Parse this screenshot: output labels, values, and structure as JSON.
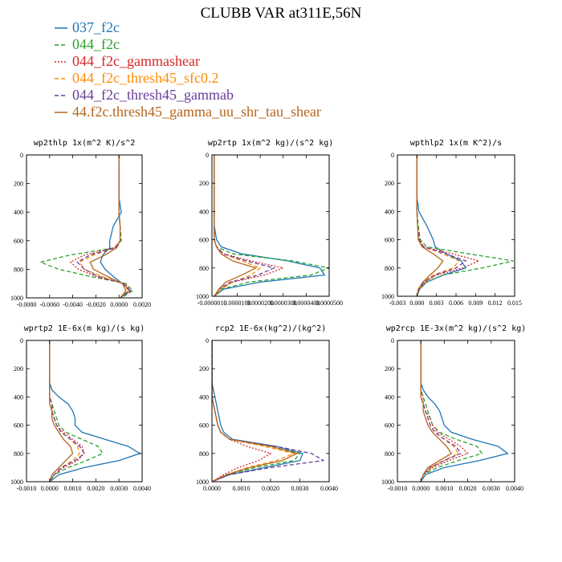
{
  "figure": {
    "title": "CLUBB VAR at311E,56N",
    "colors": {
      "037_f2c": "#1f77b4",
      "044_f2c": "#2ca02c",
      "044_f2c_gammashear": "#d62728",
      "044_f2c_thresh45_sfc0.2": "#ff8c00",
      "044_f2c_thresh45_gammab": "#6a3d9a",
      "44.f2c.thresh45_gamma_uu_shr_tau_shear": "#b5651d"
    }
  },
  "legend": [
    {
      "label": "037_f2c",
      "color": "#1f77b4",
      "dash": "solid"
    },
    {
      "label": "044_f2c",
      "color": "#2ca02c",
      "dash": "dashed"
    },
    {
      "label": "044_f2c_gammashear",
      "color": "#d62728",
      "dash": "dotted"
    },
    {
      "label": "044_f2c_thresh45_sfc0.2",
      "color": "#ff8c00",
      "dash": "dashed"
    },
    {
      "label": "044_f2c_thresh45_gammab",
      "color": "#6a3d9a",
      "dash": "dashed"
    },
    {
      "label": "44.f2c.thresh45_gamma_uu_shr_tau_shear",
      "color": "#b5651d",
      "dash": "solid"
    }
  ],
  "chart_data": [
    {
      "type": "line",
      "title": "wp2thlp 1x(m^2 K)/s^2",
      "xlim": [
        -0.008,
        0.002
      ],
      "ylim": [
        1000,
        0
      ],
      "xticks": [
        "-0.0080",
        "-0.0060",
        "-0.0040",
        "-0.0020",
        "0.0000",
        "0.0020"
      ],
      "xtick_values": [
        -0.008,
        -0.006,
        -0.004,
        -0.002,
        0.0,
        0.002
      ],
      "yticks": [
        0,
        200,
        400,
        600,
        800,
        1000
      ],
      "y": [
        0,
        300,
        400,
        500,
        600,
        650,
        700,
        750,
        800,
        850,
        900,
        950,
        1000
      ],
      "series": [
        {
          "name": "037_f2c",
          "values": [
            0,
            0,
            0.0002,
            -0.0005,
            -0.0008,
            -0.0008,
            -0.0014,
            -0.0016,
            -0.0012,
            -0.0005,
            0.0003,
            0.001,
            0.0001
          ]
        },
        {
          "name": "044_f2c",
          "values": [
            0,
            0,
            0,
            0.0001,
            0.0002,
            -0.0004,
            -0.0042,
            -0.0068,
            -0.0052,
            -0.0025,
            0.0006,
            0.0012,
            0.0002
          ]
        },
        {
          "name": "044_f2c_gammashear",
          "values": [
            0,
            0,
            0,
            0.0001,
            0.0001,
            -0.0004,
            -0.003,
            -0.0042,
            -0.0035,
            -0.002,
            0.0005,
            0.001,
            0.0001
          ]
        },
        {
          "name": "044_f2c_thresh45_sfc0.2",
          "values": [
            0,
            0,
            0,
            0.0001,
            0.0001,
            -0.0003,
            -0.0022,
            -0.0034,
            -0.003,
            -0.0015,
            0.0004,
            0.0008,
            0.0001
          ]
        },
        {
          "name": "044_f2c_thresh45_gammab",
          "values": [
            0,
            0,
            0,
            0.0001,
            0.0001,
            -0.0003,
            -0.0025,
            -0.0036,
            -0.003,
            -0.0018,
            0.0004,
            0.0009,
            0.0001
          ]
        },
        {
          "name": "44.f2c.thresh45_gamma_uu_shr_tau_shear",
          "values": [
            0,
            0,
            0,
            0.0001,
            0.0001,
            -0.0002,
            -0.0012,
            -0.0025,
            -0.0022,
            -0.001,
            0.0003,
            0.0006,
            0.0001
          ]
        }
      ]
    },
    {
      "type": "line",
      "title": "wp2rtp 1x(m^2 kg)/(s^2 kg)",
      "xlim": [
        -1e-06,
        5e-05
      ],
      "ylim": [
        1000,
        0
      ],
      "xticks": [
        "-0.0000010",
        "0.0000100",
        "0.0000200",
        "0.0000300",
        "0.0000400",
        "0.0000500"
      ],
      "xtick_values": [
        -1e-06,
        1e-05,
        2e-05,
        3e-05,
        4e-05,
        5e-05
      ],
      "yticks": [
        0,
        200,
        400,
        600,
        800,
        1000
      ],
      "y": [
        0,
        300,
        500,
        600,
        650,
        700,
        750,
        800,
        850,
        900,
        950,
        1000
      ],
      "series": [
        {
          "name": "037_f2c",
          "values": [
            0,
            0,
            0,
            1e-06,
            3e-06,
            1.2e-05,
            3.2e-05,
            4.6e-05,
            4.8e-05,
            2e-05,
            4e-06,
            0
          ]
        },
        {
          "name": "044_f2c",
          "values": [
            0,
            0,
            0,
            0,
            1e-06,
            8e-06,
            3.4e-05,
            5e-05,
            4.2e-05,
            1.5e-05,
            3e-06,
            0
          ]
        },
        {
          "name": "044_f2c_gammashear",
          "values": [
            0,
            0,
            0,
            0,
            1e-06,
            4e-06,
            1.6e-05,
            3e-05,
            2.2e-05,
            8e-06,
            2e-06,
            0
          ]
        },
        {
          "name": "044_f2c_thresh45_sfc0.2",
          "values": [
            0,
            0,
            0,
            0,
            1e-06,
            4e-06,
            1.2e-05,
            2e-05,
            1.6e-05,
            8e-06,
            3e-06,
            0
          ]
        },
        {
          "name": "044_f2c_thresh45_gammab",
          "values": [
            0,
            0,
            0,
            0,
            1e-06,
            4e-06,
            1.4e-05,
            2.6e-05,
            1.9e-05,
            7e-06,
            2e-06,
            0
          ]
        },
        {
          "name": "44.f2c.thresh45_gamma_uu_shr_tau_shear",
          "values": [
            0,
            0,
            0,
            0,
            1e-06,
            3e-06,
            8e-06,
            1.8e-05,
            1.2e-05,
            5e-06,
            2e-06,
            0
          ]
        }
      ]
    },
    {
      "type": "line",
      "title": "wpthlp2 1x(m K^2)/s",
      "xlim": [
        -0.003,
        0.015
      ],
      "ylim": [
        1000,
        0
      ],
      "xticks": [
        "-0.003",
        "0.000",
        "0.003",
        "0.006",
        "0.009",
        "0.012",
        "0.015"
      ],
      "xtick_values": [
        -0.003,
        0.0,
        0.003,
        0.006,
        0.009,
        0.012,
        0.015
      ],
      "yticks": [
        0,
        200,
        400,
        600,
        800,
        1000
      ],
      "y": [
        0,
        300,
        400,
        500,
        600,
        650,
        700,
        750,
        800,
        850,
        900,
        950,
        1000
      ],
      "series": [
        {
          "name": "037_f2c",
          "values": [
            0,
            0,
            0.0003,
            0.0015,
            0.0025,
            0.0028,
            0.0045,
            0.0068,
            0.0075,
            0.004,
            0.0015,
            0.0004,
            0
          ]
        },
        {
          "name": "044_f2c",
          "values": [
            0,
            0,
            0,
            0.0002,
            0.0005,
            0.0015,
            0.008,
            0.0148,
            0.01,
            0.004,
            0.0015,
            0.0004,
            0
          ]
        },
        {
          "name": "044_f2c_gammashear",
          "values": [
            0,
            0,
            0,
            0.0001,
            0.0004,
            0.001,
            0.0055,
            0.0095,
            0.007,
            0.003,
            0.0012,
            0.0003,
            0
          ]
        },
        {
          "name": "044_f2c_thresh45_sfc0.2",
          "values": [
            0,
            0,
            0,
            0.0001,
            0.0003,
            0.001,
            0.004,
            0.0065,
            0.0055,
            0.0025,
            0.001,
            0.0003,
            0
          ]
        },
        {
          "name": "044_f2c_thresh45_gammab",
          "values": [
            0,
            0,
            0,
            0.0001,
            0.0003,
            0.001,
            0.0045,
            0.0075,
            0.006,
            0.0028,
            0.0011,
            0.0003,
            0
          ]
        },
        {
          "name": "44.f2c.thresh45_gamma_uu_shr_tau_shear",
          "values": [
            0,
            0,
            0,
            0.0001,
            0.0002,
            0.0008,
            0.0025,
            0.004,
            0.0032,
            0.002,
            0.0009,
            0.0002,
            0
          ]
        }
      ]
    },
    {
      "type": "line",
      "title": "wprtp2 1E-6x(m kg)/(s kg)",
      "xlim": [
        -0.001,
        0.004
      ],
      "ylim": [
        1000,
        0
      ],
      "xticks": [
        "-0.0010",
        "0.0000",
        "0.0010",
        "0.0020",
        "0.0030",
        "0.0040"
      ],
      "xtick_values": [
        -0.001,
        0.0,
        0.001,
        0.002,
        0.003,
        0.004
      ],
      "yticks": [
        0,
        200,
        400,
        600,
        800,
        1000
      ],
      "y": [
        0,
        300,
        350,
        400,
        450,
        500,
        550,
        600,
        650,
        700,
        750,
        800,
        850,
        900,
        950,
        1000
      ],
      "series": [
        {
          "name": "037_f2c",
          "values": [
            0,
            0,
            0.0001,
            0.0004,
            0.0008,
            0.001,
            0.0011,
            0.0011,
            0.0014,
            0.0024,
            0.0034,
            0.0039,
            0.003,
            0.0015,
            0.0004,
            0
          ]
        },
        {
          "name": "044_f2c",
          "values": [
            0,
            0,
            0,
            0,
            0.0001,
            0.0002,
            0.0003,
            0.0004,
            0.0007,
            0.0014,
            0.0021,
            0.0023,
            0.0016,
            0.0008,
            0.0002,
            0
          ]
        },
        {
          "name": "044_f2c_gammashear",
          "values": [
            0,
            0,
            0,
            0,
            0.0001,
            0.0001,
            0.0002,
            0.0003,
            0.0006,
            0.001,
            0.0014,
            0.0015,
            0.0012,
            0.0006,
            0.0002,
            0
          ]
        },
        {
          "name": "044_f2c_thresh45_sfc0.2",
          "values": [
            0,
            0,
            0,
            0,
            0.0001,
            0.0001,
            0.0002,
            0.0003,
            0.0005,
            0.0009,
            0.0012,
            0.0013,
            0.001,
            0.0005,
            0.0002,
            0
          ]
        },
        {
          "name": "044_f2c_thresh45_gammab",
          "values": [
            0,
            0,
            0,
            0,
            0.0001,
            0.0001,
            0.0002,
            0.0003,
            0.0005,
            0.0009,
            0.0013,
            0.0015,
            0.0011,
            0.0005,
            0.0002,
            0
          ]
        },
        {
          "name": "44.f2c.thresh45_gamma_uu_shr_tau_shear",
          "values": [
            0,
            0,
            0,
            0,
            0,
            0.0001,
            0.0001,
            0.0002,
            0.0004,
            0.0006,
            0.0009,
            0.001,
            0.0007,
            0.0004,
            0.0001,
            0
          ]
        }
      ]
    },
    {
      "type": "line",
      "title": "rcp2 1E-6x(kg^2)/(kg^2)",
      "xlim": [
        0,
        0.004
      ],
      "ylim": [
        1000,
        0
      ],
      "xticks": [
        "0.0000",
        "0.0010",
        "0.0020",
        "0.0030",
        "0.0040"
      ],
      "xtick_values": [
        0.0,
        0.001,
        0.002,
        0.003,
        0.004
      ],
      "yticks": [
        0,
        200,
        400,
        600,
        800,
        1000
      ],
      "y": [
        0,
        300,
        400,
        500,
        600,
        650,
        700,
        750,
        800,
        850,
        900,
        950,
        1000
      ],
      "series": [
        {
          "name": "037_f2c",
          "values": [
            0,
            0,
            0.0001,
            0.0002,
            0.0003,
            0.0004,
            0.0007,
            0.0022,
            0.0031,
            0.003,
            0.0018,
            0.0006,
            0
          ]
        },
        {
          "name": "044_f2c",
          "values": [
            0,
            0,
            0,
            0.0001,
            0.0002,
            0.0003,
            0.0006,
            0.002,
            0.003,
            0.0028,
            0.0015,
            0.0005,
            0
          ]
        },
        {
          "name": "044_f2c_gammashear",
          "values": [
            0,
            0,
            0,
            0.0001,
            0.0002,
            0.0003,
            0.0006,
            0.0012,
            0.002,
            0.0016,
            0.0009,
            0.0004,
            0
          ]
        },
        {
          "name": "044_f2c_thresh45_sfc0.2",
          "values": [
            0,
            0,
            0,
            0.0001,
            0.0002,
            0.0003,
            0.0006,
            0.0018,
            0.0028,
            0.0022,
            0.0012,
            0.0005,
            0
          ]
        },
        {
          "name": "044_f2c_thresh45_gammab",
          "values": [
            0,
            0,
            0,
            0.0001,
            0.0002,
            0.0003,
            0.0006,
            0.0022,
            0.0034,
            0.0038,
            0.002,
            0.0006,
            0
          ]
        },
        {
          "name": "44.f2c.thresh45_gamma_uu_shr_tau_shear",
          "values": [
            0,
            0,
            0,
            0.0001,
            0.0002,
            0.0003,
            0.0006,
            0.002,
            0.0029,
            0.0024,
            0.0013,
            0.0005,
            0
          ]
        }
      ]
    },
    {
      "type": "line",
      "title": "wp2rcp 1E-3x(m^2 kg)/(s^2 kg)",
      "xlim": [
        -0.001,
        0.004
      ],
      "ylim": [
        1000,
        0
      ],
      "xticks": [
        "-0.0010",
        "0.0000",
        "0.0010",
        "0.0020",
        "0.0030",
        "0.0040"
      ],
      "xtick_values": [
        -0.001,
        0.0,
        0.001,
        0.002,
        0.003,
        0.004
      ],
      "yticks": [
        0,
        200,
        400,
        600,
        800,
        1000
      ],
      "y": [
        0,
        300,
        350,
        400,
        450,
        500,
        550,
        600,
        650,
        700,
        750,
        800,
        850,
        900,
        950,
        1000
      ],
      "series": [
        {
          "name": "037_f2c",
          "values": [
            0,
            0,
            0.0001,
            0.0003,
            0.0006,
            0.0008,
            0.0009,
            0.001,
            0.0013,
            0.0022,
            0.0033,
            0.0037,
            0.0025,
            0.001,
            0.0002,
            0
          ]
        },
        {
          "name": "044_f2c",
          "values": [
            0,
            0,
            0,
            0.0001,
            0.0002,
            0.0003,
            0.0004,
            0.0005,
            0.0008,
            0.0015,
            0.0024,
            0.0026,
            0.0016,
            0.0007,
            0.0001,
            0
          ]
        },
        {
          "name": "044_f2c_gammashear",
          "values": [
            0,
            0,
            0,
            0.0001,
            0.0001,
            0.0002,
            0.0004,
            0.0005,
            0.0007,
            0.0012,
            0.0017,
            0.002,
            0.0012,
            0.0005,
            0.0001,
            0
          ]
        },
        {
          "name": "044_f2c_thresh45_sfc0.2",
          "values": [
            0,
            0,
            0,
            0,
            0.0001,
            0.0002,
            0.0003,
            0.0004,
            0.0006,
            0.001,
            0.0014,
            0.0016,
            0.001,
            0.0004,
            0.0001,
            0
          ]
        },
        {
          "name": "044_f2c_thresh45_gammab",
          "values": [
            0,
            0,
            0,
            0,
            0.0001,
            0.0002,
            0.0003,
            0.0004,
            0.0006,
            0.001,
            0.0015,
            0.0017,
            0.001,
            0.0004,
            0.0001,
            0
          ]
        },
        {
          "name": "44.f2c.thresh45_gamma_uu_shr_tau_shear",
          "values": [
            0,
            0,
            0,
            0,
            0.0001,
            0.0001,
            0.0002,
            0.0003,
            0.0005,
            0.0008,
            0.0011,
            0.0013,
            0.0008,
            0.0003,
            0.0001,
            0
          ]
        }
      ]
    }
  ]
}
